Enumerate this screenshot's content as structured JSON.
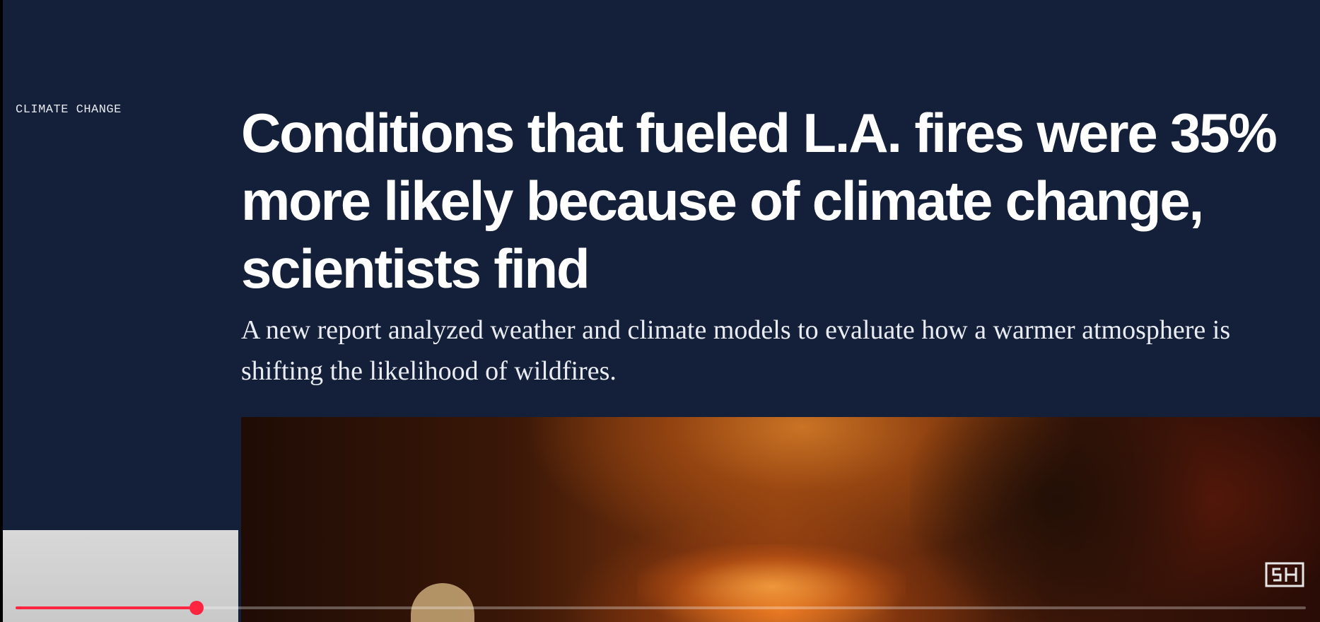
{
  "article": {
    "category": "CLIMATE CHANGE",
    "headline": "Conditions that fueled L.A. fires were 35% more likely because of climate change, scientists find",
    "dek": "A new report analyzed weather and climate models to evaluate how a warmer atmosphere is shifting the likelihood of wildfires."
  },
  "player": {
    "progress_fraction": 0.14,
    "progress_color": "#ff2440",
    "channel_logo_icon": "sh-logo-icon"
  },
  "colors": {
    "background": "#142039",
    "headline_text": "#ffffff",
    "accent": "#ff2440"
  }
}
